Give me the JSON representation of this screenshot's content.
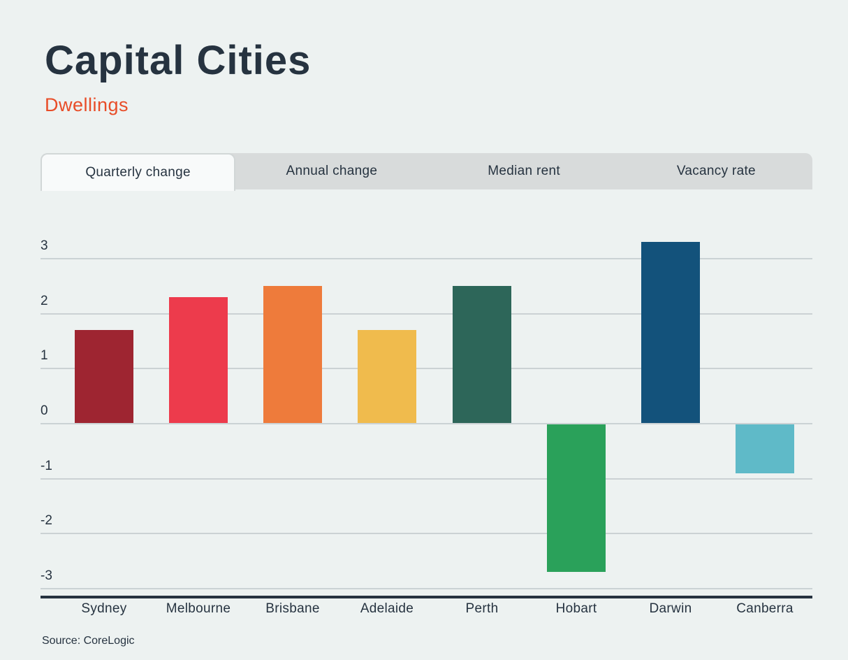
{
  "header": {
    "title": "Capital Cities",
    "subtitle": "Dwellings"
  },
  "tabs": [
    {
      "label": "Quarterly change",
      "active": true
    },
    {
      "label": "Annual change",
      "active": false
    },
    {
      "label": "Median rent",
      "active": false
    },
    {
      "label": "Vacancy rate",
      "active": false
    }
  ],
  "chart_data": {
    "type": "bar",
    "title": "Capital Cities",
    "subtitle": "Dwellings",
    "categories": [
      "Sydney",
      "Melbourne",
      "Brisbane",
      "Adelaide",
      "Perth",
      "Hobart",
      "Darwin",
      "Canberra"
    ],
    "values": [
      1.7,
      2.3,
      2.5,
      1.7,
      2.5,
      -2.7,
      3.3,
      -0.9
    ],
    "bar_colors": [
      "#9e2531",
      "#ed3b4c",
      "#ee7b3b",
      "#f0bb4d",
      "#2d6659",
      "#2aa15a",
      "#13527b",
      "#5fbac8"
    ],
    "yticks": [
      3,
      2,
      1,
      0,
      -1,
      -2,
      -3
    ],
    "ylim": [
      -3.2,
      3.5
    ],
    "xlabel": "",
    "ylabel": "",
    "grid": true,
    "legend": false
  },
  "source": "Source: CoreLogic",
  "colors": {
    "background": "#edf2f1",
    "text": "#263340",
    "accent": "#e84d28",
    "tab_strip": "#d8dbdb",
    "active_tab_bg": "#f8fafa",
    "tab_border": "#d2d7d7",
    "gridline": "#cbd2d4",
    "axis_line": "#263340"
  }
}
